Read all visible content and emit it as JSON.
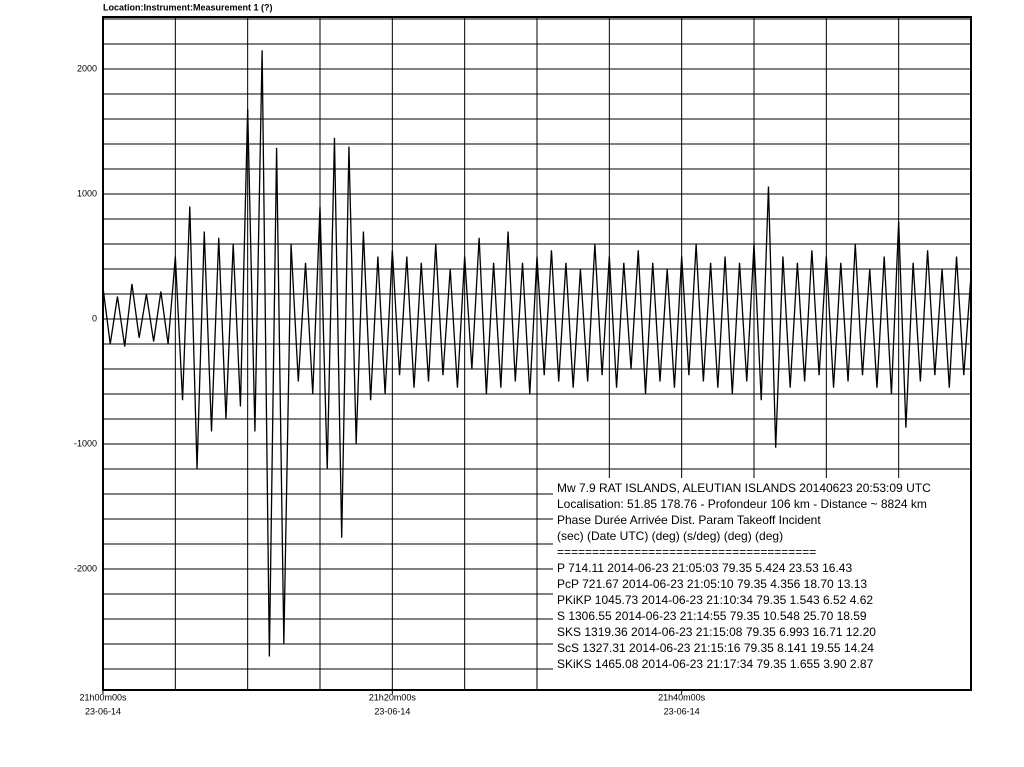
{
  "chart_data": {
    "type": "line",
    "title": "Location:Instrument:Measurement 1 (?)",
    "xlim": [
      0,
      60
    ],
    "xticks": [
      {
        "value": 0,
        "label": "21h00m00s"
      },
      {
        "value": 20,
        "label": "21h20m00s"
      },
      {
        "value": 40,
        "label": "21h40m00s"
      }
    ],
    "xtick_dates": [
      "23-06-14",
      "23-06-14",
      "23-06-14"
    ],
    "xgrid": [
      0,
      5,
      10,
      15,
      20,
      25,
      30,
      35,
      40,
      45,
      50,
      55,
      60
    ],
    "ylim": [
      -2968,
      2416
    ],
    "yticks": [
      2000,
      1000,
      0,
      -1000,
      -2000
    ],
    "ygrid": [
      -2800,
      -2600,
      -2400,
      -2200,
      -2000,
      -1800,
      -1600,
      -1400,
      -1200,
      -1000,
      -800,
      -600,
      -400,
      -200,
      0,
      200,
      400,
      600,
      800,
      1000,
      1200,
      1400,
      1600,
      1800,
      2000,
      2200,
      2400
    ],
    "grid": true,
    "series": [
      {
        "color": "#000000",
        "x": [
          0,
          0.5,
          1,
          1.5,
          2,
          2.5,
          3,
          3.5,
          4,
          4.5,
          5,
          5.5,
          6,
          6.5,
          7,
          7.5,
          8,
          8.5,
          9,
          9.5,
          10,
          10.5,
          11,
          11.5,
          12,
          12.5,
          13,
          13.5,
          14,
          14.5,
          15,
          15.5,
          16,
          16.5,
          17,
          17.5,
          18,
          18.5,
          19,
          19.5,
          20,
          20.5,
          21,
          21.5,
          22,
          22.5,
          23,
          23.5,
          24,
          24.5,
          25,
          25.5,
          26,
          26.5,
          27,
          27.5,
          28,
          28.5,
          29,
          29.5,
          30,
          30.5,
          31,
          31.5,
          32,
          32.5,
          33,
          33.5,
          34,
          34.5,
          35,
          35.5,
          36,
          36.5,
          37,
          37.5,
          38,
          38.5,
          39,
          39.5,
          40,
          40.5,
          41,
          41.5,
          42,
          42.5,
          43,
          43.5,
          44,
          44.5,
          45,
          45.5,
          46,
          46.5,
          47,
          47.5,
          48,
          48.5,
          49,
          49.5,
          50,
          50.5,
          51,
          51.5,
          52,
          52.5,
          53,
          53.5,
          54,
          54.5,
          55,
          55.5,
          56,
          56.5,
          57,
          57.5,
          58,
          58.5,
          59,
          59.5,
          60
        ],
        "values": [
          250,
          -200,
          180,
          -220,
          280,
          -150,
          200,
          -180,
          220,
          -200,
          500,
          -650,
          900,
          -1200,
          700,
          -900,
          650,
          -800,
          600,
          -700,
          1680,
          -900,
          2150,
          -2700,
          1370,
          -2600,
          600,
          -500,
          450,
          -600,
          900,
          -1200,
          1450,
          -1750,
          1380,
          -1000,
          700,
          -650,
          500,
          -600,
          550,
          -450,
          500,
          -550,
          450,
          -500,
          600,
          -450,
          400,
          -550,
          500,
          -400,
          650,
          -600,
          450,
          -550,
          700,
          -500,
          450,
          -600,
          500,
          -450,
          550,
          -500,
          450,
          -550,
          400,
          -500,
          600,
          -450,
          500,
          -550,
          450,
          -400,
          550,
          -600,
          450,
          -500,
          400,
          -550,
          500,
          -450,
          600,
          -500,
          450,
          -550,
          500,
          -600,
          450,
          -500,
          600,
          -650,
          1060,
          -1030,
          500,
          -550,
          450,
          -500,
          550,
          -450,
          500,
          -550,
          450,
          -500,
          600,
          -450,
          400,
          -550,
          500,
          -600,
          780,
          -870,
          450,
          -500,
          550,
          -450,
          400,
          -550,
          500,
          -450,
          350
        ]
      }
    ],
    "annotations": [
      "Mw 7.9  RAT ISLANDS, ALEUTIAN ISLANDS 20140623 20:53:09 UTC",
      "Localisation: 51.85 178.76 - Profondeur 106   km - Distance ~ 8824 km",
      "Phase  Durée         Arrivée          Dist.   Param  Takeoff  Incident",
      "        (sec)         (Date UTC)          (deg)  (s/deg)  (deg)   (deg)",
      "=====================================",
      "P  714.11   2014-06-23  21:05:03  79.35   5.424   23.53   16.43",
      "PcP  721.67   2014-06-23  21:05:10  79.35   4.356   18.70   13.13",
      "PKiKP  1045.73   2014-06-23  21:10:34   79.35   1.543   6.52   4.62",
      "S   1306.55   2014-06-23  21:14:55   79.35   10.548   25.70   18.59",
      "SKS   1319.36   2014-06-23  21:15:08   79.35   6.993   16.71   12.20",
      "ScS   1327.31   2014-06-23  21:15:16   79.35   8.141   19.55   14.24",
      "SKiKS   1465.08   2014-06-23  21:17:34   79.35   1.655   3.90   2.87"
    ]
  }
}
